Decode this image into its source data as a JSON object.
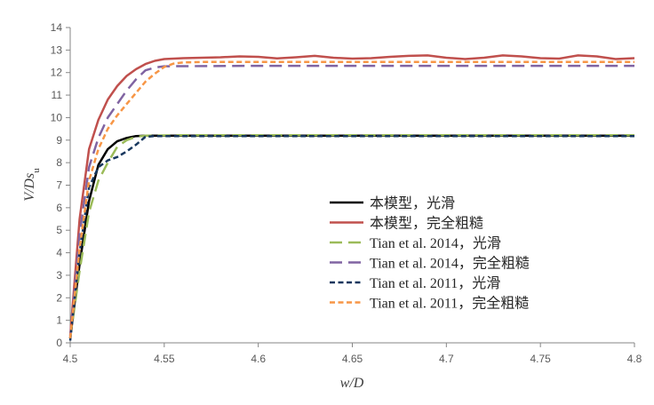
{
  "chart_data": {
    "type": "line",
    "title": "",
    "xlabel": "w/D",
    "ylabel": "V/Ds_u",
    "xlim": [
      4.5,
      4.8
    ],
    "ylim": [
      0,
      14
    ],
    "x_ticks": [
      "4.5",
      "4.55",
      "4.6",
      "4.65",
      "4.7",
      "4.75",
      "4.8"
    ],
    "y_ticks": [
      "0",
      "1",
      "2",
      "3",
      "4",
      "5",
      "6",
      "7",
      "8",
      "9",
      "10",
      "11",
      "12",
      "13",
      "14"
    ],
    "grid": false,
    "legend_position": "center-right",
    "series": [
      {
        "name": "本模型，光滑",
        "color": "#000000",
        "dash": "solid",
        "x": [
          4.5,
          4.505,
          4.51,
          4.515,
          4.52,
          4.525,
          4.53,
          4.535,
          4.54,
          4.56,
          4.6,
          4.7,
          4.8
        ],
        "y": [
          0.2,
          3.5,
          6.3,
          7.9,
          8.6,
          8.95,
          9.1,
          9.18,
          9.2,
          9.2,
          9.2,
          9.2,
          9.2
        ]
      },
      {
        "name": "本模型，完全粗糙",
        "color": "#c0504d",
        "dash": "solid",
        "x": [
          4.5,
          4.505,
          4.51,
          4.515,
          4.52,
          4.525,
          4.53,
          4.535,
          4.54,
          4.545,
          4.55,
          4.56,
          4.57,
          4.58,
          4.59,
          4.6,
          4.61,
          4.62,
          4.63,
          4.64,
          4.65,
          4.66,
          4.67,
          4.68,
          4.69,
          4.7,
          4.71,
          4.72,
          4.73,
          4.74,
          4.75,
          4.76,
          4.77,
          4.78,
          4.79,
          4.8
        ],
        "y": [
          0.3,
          5.5,
          8.6,
          9.9,
          10.8,
          11.4,
          11.85,
          12.15,
          12.38,
          12.52,
          12.6,
          12.64,
          12.66,
          12.68,
          12.72,
          12.7,
          12.63,
          12.68,
          12.74,
          12.66,
          12.62,
          12.64,
          12.7,
          12.74,
          12.76,
          12.66,
          12.6,
          12.66,
          12.76,
          12.72,
          12.64,
          12.62,
          12.76,
          12.72,
          12.6,
          12.64
        ]
      },
      {
        "name": "Tian et al. 2014，光滑",
        "color": "#9bbb59",
        "dash": "long",
        "x": [
          4.5,
          4.505,
          4.51,
          4.515,
          4.52,
          4.525,
          4.53,
          4.535,
          4.54,
          4.56,
          4.6,
          4.7,
          4.8
        ],
        "y": [
          0.2,
          3.2,
          5.8,
          7.2,
          8.0,
          8.7,
          9.0,
          9.15,
          9.2,
          9.22,
          9.22,
          9.22,
          9.22
        ]
      },
      {
        "name": "Tian et al. 2014，完全粗糙",
        "color": "#8064a2",
        "dash": "long",
        "x": [
          4.5,
          4.505,
          4.51,
          4.515,
          4.52,
          4.525,
          4.53,
          4.535,
          4.54,
          4.545,
          4.55,
          4.6,
          4.7,
          4.8
        ],
        "y": [
          0.2,
          4.8,
          7.8,
          9.1,
          10.0,
          10.6,
          11.2,
          11.7,
          12.1,
          12.22,
          12.28,
          12.3,
          12.3,
          12.3
        ]
      },
      {
        "name": "Tian et al. 2011，光滑",
        "color": "#17375e",
        "dash": "short",
        "x": [
          4.5,
          4.505,
          4.51,
          4.515,
          4.52,
          4.525,
          4.53,
          4.535,
          4.54,
          4.545,
          4.55,
          4.6,
          4.7,
          4.8
        ],
        "y": [
          0.1,
          4.0,
          6.9,
          7.8,
          8.1,
          8.25,
          8.5,
          8.8,
          9.15,
          9.18,
          9.18,
          9.18,
          9.18,
          9.18
        ]
      },
      {
        "name": "Tian et al. 2011，完全粗糙",
        "color": "#f79646",
        "dash": "short",
        "x": [
          4.5,
          4.505,
          4.51,
          4.515,
          4.52,
          4.525,
          4.53,
          4.535,
          4.54,
          4.545,
          4.55,
          4.555,
          4.56,
          4.57,
          4.6,
          4.7,
          4.8
        ],
        "y": [
          0.2,
          4.2,
          7.2,
          8.6,
          9.5,
          10.1,
          10.6,
          11.1,
          11.6,
          11.95,
          12.25,
          12.4,
          12.45,
          12.47,
          12.47,
          12.47,
          12.47
        ]
      }
    ]
  }
}
